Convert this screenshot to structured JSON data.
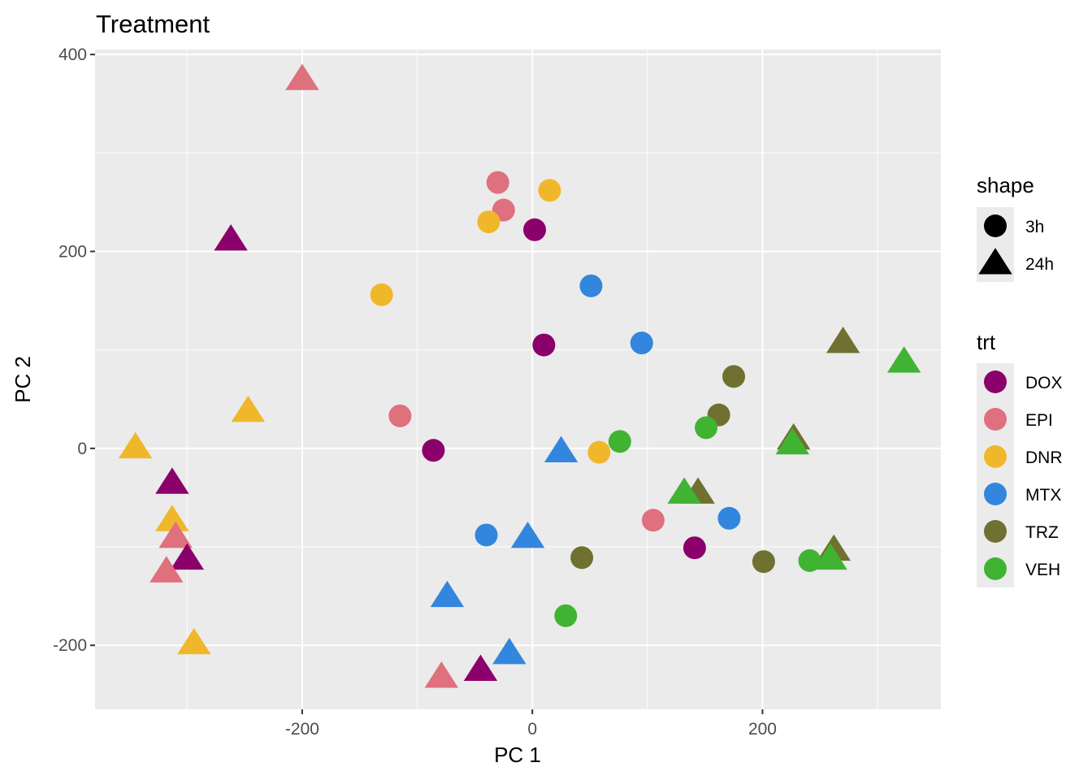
{
  "chart_data": {
    "type": "scatter",
    "title": "Treatment",
    "xlabel": "PC 1",
    "ylabel": "PC 2",
    "xlim": [
      -380,
      355
    ],
    "ylim": [
      -265,
      405
    ],
    "x_ticks": [
      -200,
      0,
      200
    ],
    "y_ticks": [
      -200,
      0,
      200,
      400
    ],
    "x_tick_labels": [
      "-200",
      "0",
      "200"
    ],
    "y_tick_labels": [
      "-200",
      "0",
      "200",
      "400"
    ],
    "grid": true,
    "legend_position": "right",
    "shape_legend": {
      "title": "shape",
      "entries": [
        {
          "label": "3h",
          "shape": "circle"
        },
        {
          "label": "24h",
          "shape": "triangle"
        }
      ]
    },
    "color_legend": {
      "title": "trt",
      "entries": [
        {
          "label": "DOX",
          "color": "#8B006B"
        },
        {
          "label": "EPI",
          "color": "#DF707E"
        },
        {
          "label": "DNR",
          "color": "#F1B72B"
        },
        {
          "label": "MTX",
          "color": "#3386DD"
        },
        {
          "label": "TRZ",
          "color": "#707031"
        },
        {
          "label": "VEH",
          "color": "#41B333"
        }
      ]
    },
    "points": [
      {
        "x": -200,
        "y": 375,
        "shape": "24h",
        "trt": "EPI"
      },
      {
        "x": -30,
        "y": 270,
        "shape": "3h",
        "trt": "EPI"
      },
      {
        "x": -25,
        "y": 242,
        "shape": "3h",
        "trt": "EPI"
      },
      {
        "x": 15,
        "y": 262,
        "shape": "3h",
        "trt": "DNR"
      },
      {
        "x": -38,
        "y": 230,
        "shape": "3h",
        "trt": "DNR"
      },
      {
        "x": 2,
        "y": 222,
        "shape": "3h",
        "trt": "DOX"
      },
      {
        "x": -262,
        "y": 212,
        "shape": "24h",
        "trt": "DOX"
      },
      {
        "x": -131,
        "y": 156,
        "shape": "3h",
        "trt": "DNR"
      },
      {
        "x": 51,
        "y": 165,
        "shape": "3h",
        "trt": "MTX"
      },
      {
        "x": 95,
        "y": 107,
        "shape": "3h",
        "trt": "MTX"
      },
      {
        "x": 10,
        "y": 105,
        "shape": "3h",
        "trt": "DOX"
      },
      {
        "x": 270,
        "y": 108,
        "shape": "24h",
        "trt": "TRZ"
      },
      {
        "x": 323,
        "y": 88,
        "shape": "24h",
        "trt": "VEH"
      },
      {
        "x": 175,
        "y": 73,
        "shape": "3h",
        "trt": "TRZ"
      },
      {
        "x": -247,
        "y": 38,
        "shape": "24h",
        "trt": "DNR"
      },
      {
        "x": -115,
        "y": 33,
        "shape": "3h",
        "trt": "EPI"
      },
      {
        "x": 162,
        "y": 34,
        "shape": "3h",
        "trt": "TRZ"
      },
      {
        "x": 151,
        "y": 21,
        "shape": "3h",
        "trt": "VEH"
      },
      {
        "x": 227,
        "y": 10,
        "shape": "24h",
        "trt": "TRZ"
      },
      {
        "x": 226,
        "y": 5,
        "shape": "24h",
        "trt": "VEH"
      },
      {
        "x": 76,
        "y": 7,
        "shape": "3h",
        "trt": "VEH"
      },
      {
        "x": -345,
        "y": 1,
        "shape": "24h",
        "trt": "DNR"
      },
      {
        "x": -86,
        "y": -2,
        "shape": "3h",
        "trt": "DOX"
      },
      {
        "x": 25,
        "y": -3,
        "shape": "24h",
        "trt": "MTX"
      },
      {
        "x": 58,
        "y": -4,
        "shape": "3h",
        "trt": "DNR"
      },
      {
        "x": -313,
        "y": -35,
        "shape": "24h",
        "trt": "DOX"
      },
      {
        "x": 144,
        "y": -45,
        "shape": "24h",
        "trt": "TRZ"
      },
      {
        "x": 132,
        "y": -45,
        "shape": "24h",
        "trt": "VEH"
      },
      {
        "x": -313,
        "y": -73,
        "shape": "24h",
        "trt": "DNR"
      },
      {
        "x": 105,
        "y": -73,
        "shape": "3h",
        "trt": "EPI"
      },
      {
        "x": 171,
        "y": -71,
        "shape": "3h",
        "trt": "MTX"
      },
      {
        "x": -310,
        "y": -90,
        "shape": "24h",
        "trt": "EPI"
      },
      {
        "x": -40,
        "y": -88,
        "shape": "3h",
        "trt": "MTX"
      },
      {
        "x": -4,
        "y": -90,
        "shape": "24h",
        "trt": "MTX"
      },
      {
        "x": 141,
        "y": -101,
        "shape": "3h",
        "trt": "DOX"
      },
      {
        "x": -300,
        "y": -112,
        "shape": "24h",
        "trt": "DOX"
      },
      {
        "x": 43,
        "y": -111,
        "shape": "3h",
        "trt": "TRZ"
      },
      {
        "x": 201,
        "y": -115,
        "shape": "3h",
        "trt": "TRZ"
      },
      {
        "x": 262,
        "y": -103,
        "shape": "24h",
        "trt": "TRZ"
      },
      {
        "x": 241,
        "y": -114,
        "shape": "3h",
        "trt": "VEH"
      },
      {
        "x": 259,
        "y": -112,
        "shape": "24h",
        "trt": "VEH"
      },
      {
        "x": -318,
        "y": -125,
        "shape": "24h",
        "trt": "EPI"
      },
      {
        "x": -74,
        "y": -150,
        "shape": "24h",
        "trt": "MTX"
      },
      {
        "x": 29,
        "y": -170,
        "shape": "3h",
        "trt": "VEH"
      },
      {
        "x": -294,
        "y": -198,
        "shape": "24h",
        "trt": "DNR"
      },
      {
        "x": -20,
        "y": -208,
        "shape": "24h",
        "trt": "MTX"
      },
      {
        "x": -45,
        "y": -225,
        "shape": "24h",
        "trt": "DOX"
      },
      {
        "x": -79,
        "y": -232,
        "shape": "24h",
        "trt": "EPI"
      }
    ]
  }
}
